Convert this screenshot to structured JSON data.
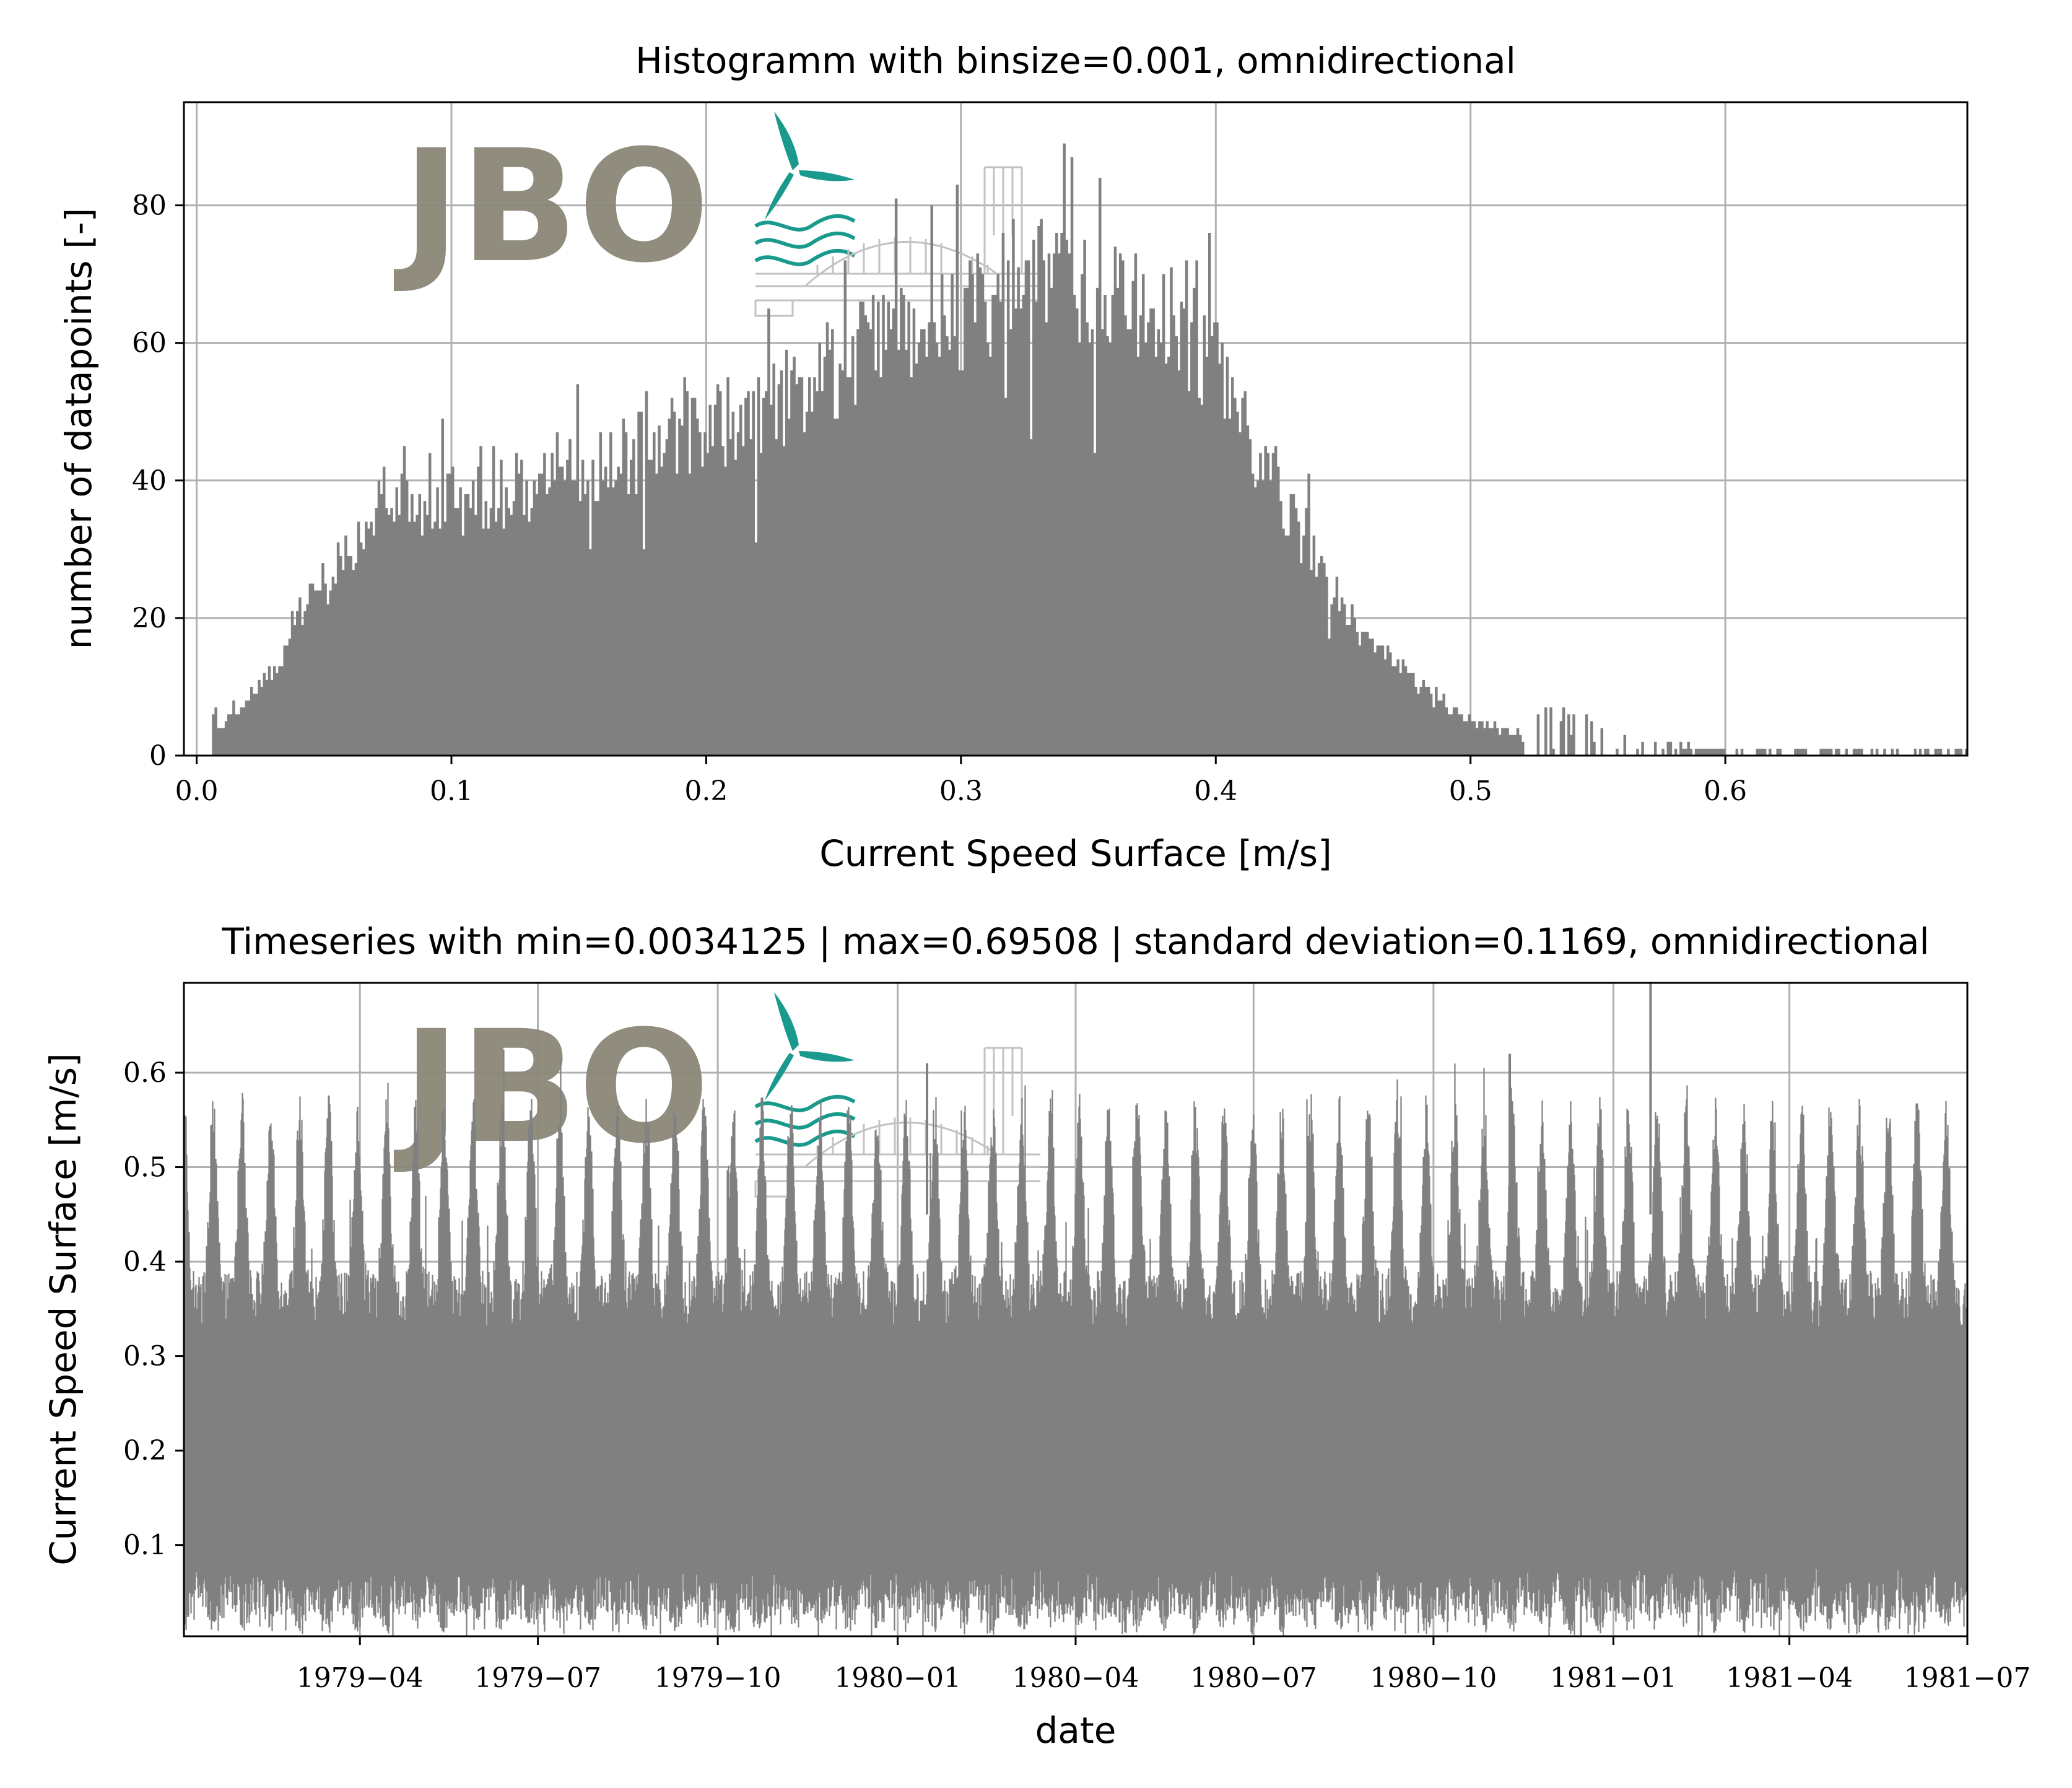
{
  "colors": {
    "bars": "#808080",
    "line": "#808080",
    "grid": "#b0b0b0",
    "logo_text": "#8a8778",
    "logo_accent": "#1a9a8c",
    "logo_drawing": "#c2c2c2"
  },
  "logo": {
    "text": "JBO",
    "icon": "wind-turbine-waves-bridge-icon"
  },
  "chart_data": [
    {
      "type": "bar",
      "title": "Histogramm with binsize=0.001, omnidirectional",
      "xlabel": "Current Speed Surface [m/s]",
      "ylabel": "number of datapoints [-]",
      "xlim": [
        -0.005,
        0.695
      ],
      "ylim": [
        0,
        95
      ],
      "bin_size": 0.001,
      "x_ticks": [
        0.0,
        0.1,
        0.2,
        0.3,
        0.4,
        0.5,
        0.6
      ],
      "x_tick_labels": [
        "0.0",
        "0.1",
        "0.2",
        "0.3",
        "0.4",
        "0.5",
        "0.6"
      ],
      "y_ticks": [
        0,
        20,
        40,
        60,
        80
      ],
      "y_tick_labels": [
        "0",
        "20",
        "40",
        "60",
        "80"
      ],
      "grid": true,
      "envelope": {
        "x": [
          0.003,
          0.01,
          0.02,
          0.03,
          0.04,
          0.05,
          0.06,
          0.07,
          0.08,
          0.09,
          0.1,
          0.12,
          0.14,
          0.16,
          0.18,
          0.2,
          0.22,
          0.24,
          0.26,
          0.28,
          0.3,
          0.32,
          0.34,
          0.36,
          0.38,
          0.4,
          0.42,
          0.44,
          0.46,
          0.48,
          0.5,
          0.52,
          0.54,
          0.56,
          0.58,
          0.6,
          0.62,
          0.65,
          0.695
        ],
        "count": [
          1,
          4,
          8,
          13,
          20,
          25,
          29,
          35,
          38,
          36,
          36,
          38,
          41,
          43,
          45,
          48,
          50,
          54,
          58,
          62,
          64,
          67,
          70,
          68,
          66,
          56,
          42,
          28,
          16,
          10,
          5,
          3,
          2,
          1,
          0.5,
          0.3,
          0.1,
          0.05,
          0
        ]
      }
    },
    {
      "type": "line",
      "title": "Timeseries with min=0.0034125 | max=0.69508 | standard deviation=0.1169, omnidirectional",
      "xlabel": "date",
      "ylabel": "Current Speed Surface [m/s]",
      "xlim": [
        "1979-01-01",
        "1981-07-01"
      ],
      "ylim": [
        0.0034125,
        0.69508
      ],
      "min": 0.0034125,
      "max": 0.69508,
      "std": 0.1169,
      "x_ticks": [
        "1979-04",
        "1979-07",
        "1979-10",
        "1980-01",
        "1980-04",
        "1980-07",
        "1980-10",
        "1981-01",
        "1981-04",
        "1981-07"
      ],
      "x_tick_days": [
        90,
        181,
        273,
        365,
        456,
        547,
        639,
        731,
        821,
        912
      ],
      "x_days_total": 912,
      "y_ticks": [
        0.1,
        0.2,
        0.3,
        0.4,
        0.5,
        0.6
      ],
      "y_tick_labels": [
        "0.1",
        "0.2",
        "0.3",
        "0.4",
        "0.5",
        "0.6"
      ],
      "grid": true,
      "tidal_band": {
        "typical_upper": 0.42,
        "spring_peak_upper": 0.55,
        "typical_lower": 0.05,
        "spring_neap_period_days": 14.77
      },
      "notable_peaks": [
        {
          "date": "1980-11-09",
          "value": 0.62
        },
        {
          "date": "1981-01-20",
          "value": 0.69508
        },
        {
          "date": "1980-01-16",
          "value": 0.61
        }
      ]
    }
  ]
}
